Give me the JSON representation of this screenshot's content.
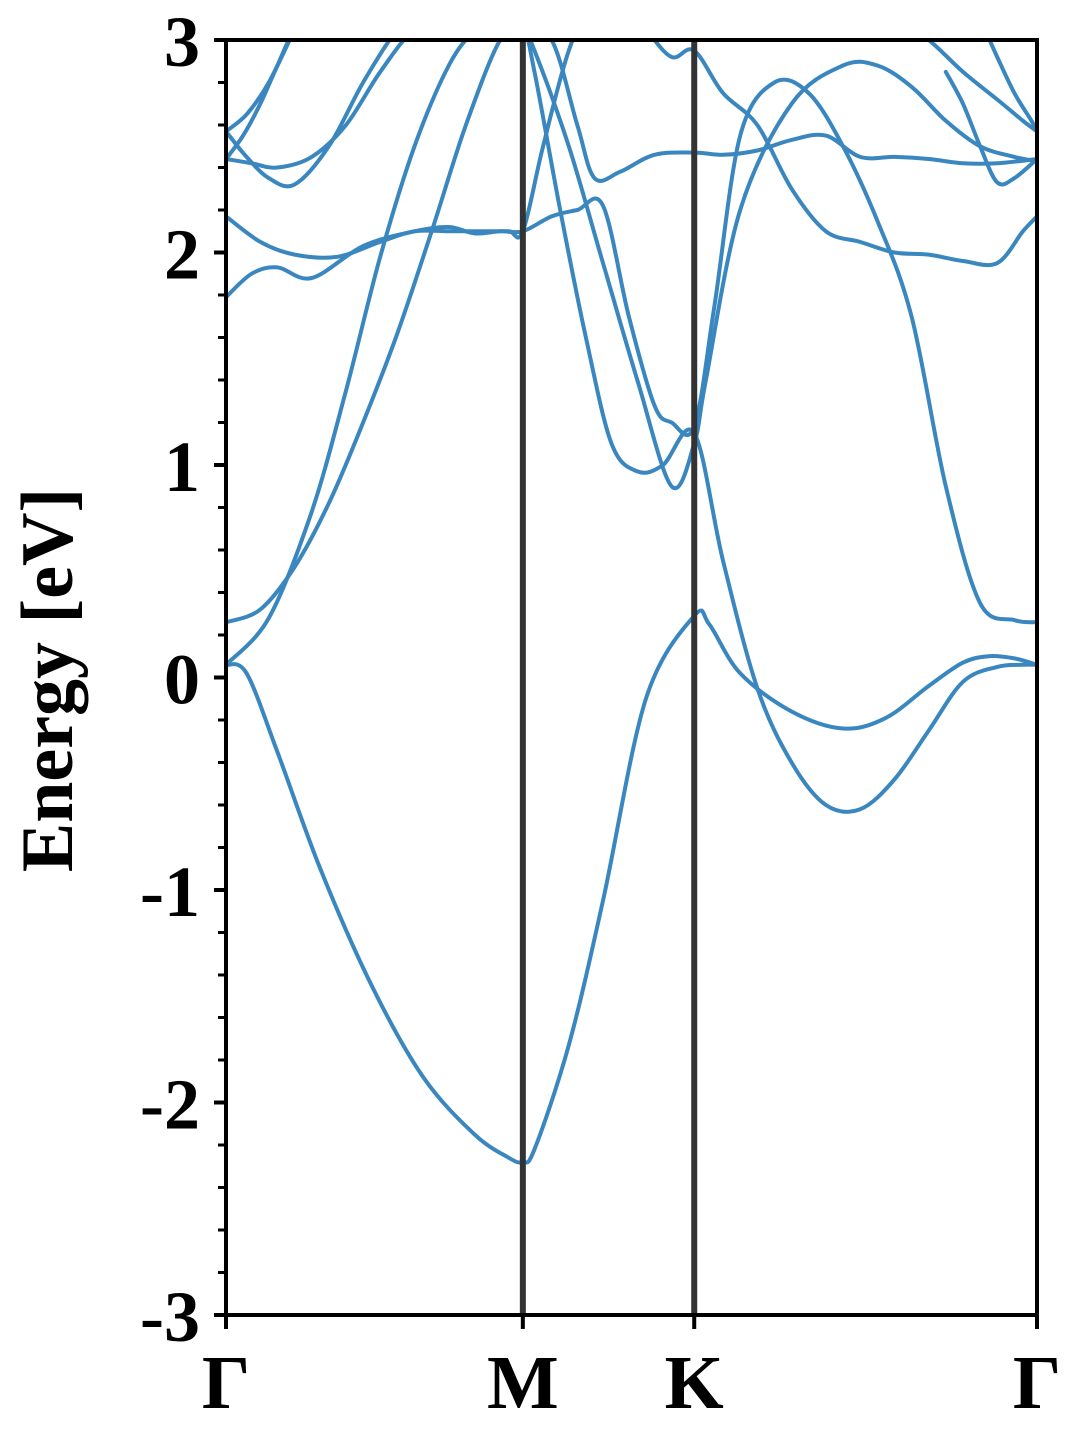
{
  "chart_data": {
    "type": "line",
    "title": "",
    "xlabel": "",
    "ylabel": "Energy [eV]",
    "ylim": [
      -3,
      3
    ],
    "yticks": [
      -3,
      -2,
      -1,
      0,
      1,
      2,
      3
    ],
    "ytick_labels": [
      "-3",
      "-2",
      "-1",
      "0",
      "1",
      "2",
      "3"
    ],
    "kpoints": [
      {
        "label": "Γ",
        "x": 0
      },
      {
        "label": "M",
        "x": 1.732
      },
      {
        "label": "K",
        "x": 2.732
      },
      {
        "label": "Γ",
        "x": 4.732
      }
    ],
    "xlim": [
      0,
      4.732
    ],
    "grid": false,
    "line_color": "#3a87c0",
    "divider_color": "#333333",
    "series": [
      {
        "x": [
          0,
          0.12,
          0.3,
          0.55,
          0.85,
          1.15,
          1.45,
          1.65,
          1.732,
          1.8,
          2.0,
          2.2,
          2.45,
          2.732,
          2.82,
          3.0,
          3.3,
          3.6,
          3.85,
          4.1,
          4.3,
          4.45,
          4.6,
          4.732
        ],
        "y": [
          0.06,
          0.02,
          -0.35,
          -0.9,
          -1.45,
          -1.88,
          -2.15,
          -2.26,
          -2.28,
          -2.22,
          -1.73,
          -1.05,
          -0.1,
          0.29,
          0.25,
          0.02,
          -0.16,
          -0.24,
          -0.19,
          -0.04,
          0.07,
          0.1,
          0.09,
          0.06
        ]
      },
      {
        "x": [
          0,
          0.25,
          0.5,
          0.7,
          0.9,
          1.1,
          1.3,
          1.45,
          1.6,
          1.732,
          1.8,
          2.0,
          2.2,
          2.4,
          2.6,
          2.732,
          2.8,
          3.0,
          3.3,
          3.6,
          3.8,
          4.0,
          4.2,
          4.4,
          4.6,
          4.732
        ],
        "y": [
          0.06,
          0.28,
          0.78,
          1.35,
          1.98,
          2.5,
          2.88,
          3.04,
          3.1,
          3.05,
          2.95,
          2.5,
          1.95,
          1.4,
          0.9,
          1.1,
          1.4,
          2.2,
          2.7,
          2.88,
          2.88,
          2.78,
          2.62,
          2.5,
          2.45,
          2.43
        ]
      },
      {
        "x": [
          0,
          0.2,
          0.4,
          0.6,
          0.8,
          1.0,
          1.2,
          1.4,
          1.6,
          1.732,
          1.8,
          1.95,
          2.1,
          2.25,
          2.4,
          2.55,
          2.732,
          2.9,
          3.1,
          3.3,
          3.5,
          3.7,
          3.9,
          4.1,
          4.3,
          4.5,
          4.65,
          4.732
        ],
        "y": [
          0.26,
          0.32,
          0.52,
          0.82,
          1.2,
          1.62,
          2.1,
          2.6,
          3.0,
          3.05,
          2.85,
          2.2,
          1.6,
          1.1,
          0.97,
          1.0,
          1.15,
          0.55,
          -0.05,
          -0.4,
          -0.6,
          -0.62,
          -0.48,
          -0.25,
          -0.02,
          0.05,
          0.06,
          0.06
        ]
      },
      {
        "x": [
          0,
          0.15,
          0.3,
          0.5,
          0.8,
          1.1,
          1.3,
          1.45,
          1.6,
          1.732,
          1.9,
          2.05,
          2.2,
          2.35,
          2.5,
          2.6,
          2.732,
          2.85,
          3.0,
          3.2,
          3.4,
          3.6,
          3.8,
          4.0,
          4.2,
          4.4,
          4.6,
          4.732
        ],
        "y": [
          1.79,
          1.9,
          1.93,
          1.88,
          2.03,
          2.1,
          2.12,
          2.09,
          2.1,
          2.1,
          2.17,
          2.2,
          2.22,
          1.7,
          1.28,
          1.2,
          1.18,
          1.75,
          2.55,
          2.8,
          2.75,
          2.5,
          2.15,
          1.7,
          0.9,
          0.35,
          0.27,
          0.26
        ]
      },
      {
        "x": [
          0,
          0.2,
          0.4,
          0.65,
          0.9,
          1.1,
          1.3,
          1.5,
          1.65,
          1.732,
          1.85,
          2.0,
          2.15,
          2.3,
          2.45,
          2.6,
          2.732,
          2.9,
          3.1,
          3.3,
          3.5,
          3.7,
          3.9,
          4.1,
          4.3,
          4.5,
          4.65,
          4.732
        ],
        "y": [
          2.17,
          2.05,
          1.99,
          1.98,
          2.05,
          2.1,
          2.1,
          2.1,
          2.1,
          2.1,
          2.5,
          2.95,
          3.2,
          3.2,
          3.05,
          2.92,
          2.95,
          2.75,
          2.6,
          2.3,
          2.1,
          2.05,
          2.0,
          1.99,
          1.96,
          1.95,
          2.1,
          2.17
        ]
      },
      {
        "x": [
          0,
          0.15,
          0.3,
          0.5,
          0.7,
          0.9,
          1.1,
          1.3,
          1.5,
          1.732,
          1.9,
          2.05,
          2.15,
          2.3,
          2.5,
          2.732,
          2.9,
          3.1,
          3.3,
          3.5,
          3.7,
          3.9,
          4.1,
          4.3,
          4.5,
          4.732
        ],
        "y": [
          2.44,
          2.42,
          2.4,
          2.45,
          2.6,
          2.85,
          3.05,
          3.1,
          3.08,
          3.05,
          3.0,
          2.6,
          2.35,
          2.38,
          2.46,
          2.47,
          2.46,
          2.48,
          2.53,
          2.55,
          2.45,
          2.45,
          2.44,
          2.42,
          2.42,
          2.44
        ]
      },
      {
        "x": [
          0,
          0.12,
          0.25,
          0.4,
          0.6,
          0.8,
          1.0,
          1.1
        ],
        "y": [
          2.57,
          2.45,
          2.35,
          2.32,
          2.5,
          2.8,
          3.05,
          3.1
        ]
      },
      {
        "x": [
          0,
          0.12,
          0.25,
          0.4
        ],
        "y": [
          2.57,
          2.65,
          2.8,
          3.05
        ]
      },
      {
        "x": [
          0,
          0.1,
          0.2,
          0.3,
          0.4,
          0.5
        ],
        "y": [
          2.44,
          2.55,
          2.7,
          2.88,
          3.05,
          3.1
        ]
      },
      {
        "x": [
          4.2,
          4.3,
          4.4,
          4.5,
          4.6,
          4.732
        ],
        "y": [
          2.85,
          2.7,
          2.5,
          2.33,
          2.35,
          2.44
        ]
      },
      {
        "x": [
          3.9,
          4.1,
          4.3,
          4.5,
          4.65,
          4.732
        ],
        "y": [
          3.1,
          3.0,
          2.85,
          2.72,
          2.62,
          2.57
        ]
      },
      {
        "x": [
          4.4,
          4.5,
          4.6,
          4.7,
          4.732
        ],
        "y": [
          3.1,
          2.92,
          2.75,
          2.62,
          2.57
        ]
      }
    ]
  }
}
